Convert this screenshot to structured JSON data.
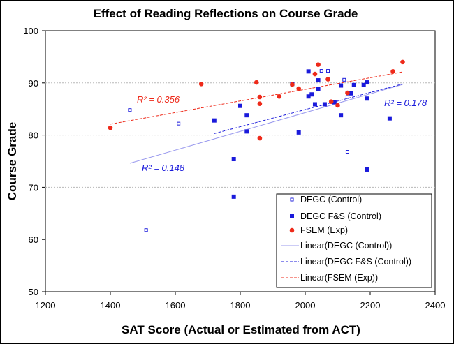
{
  "chart_data": {
    "type": "scatter",
    "title": "Effect of Reading Reflections on Course Grade",
    "xlabel": "SAT Score (Actual or Estimated from ACT)",
    "ylabel": "Course Grade",
    "xlim": [
      1200,
      2400
    ],
    "ylim": [
      50,
      100
    ],
    "xticks": [
      1200,
      1400,
      1600,
      1800,
      2000,
      2200,
      2400
    ],
    "yticks": [
      50,
      60,
      70,
      80,
      90,
      100
    ],
    "gridlines_y": [
      70,
      80,
      90
    ],
    "legend_position": "bottom-right",
    "series": [
      {
        "name": "DEGC (Control)",
        "marker": "hollow-square",
        "color": "#1a1adb",
        "points": [
          [
            1460,
            84.8
          ],
          [
            1510,
            61.8
          ],
          [
            1610,
            82.2
          ],
          [
            2050,
            92.3
          ],
          [
            2070,
            92.3
          ],
          [
            2120,
            90.6
          ],
          [
            2130,
            76.8
          ],
          [
            2130,
            87.3
          ]
        ]
      },
      {
        "name": "DEGC F&S (Control)",
        "marker": "filled-square",
        "color": "#1a1adb",
        "points": [
          [
            1720,
            82.8
          ],
          [
            1780,
            75.4
          ],
          [
            1780,
            68.2
          ],
          [
            1800,
            85.6
          ],
          [
            1820,
            83.8
          ],
          [
            1820,
            80.7
          ],
          [
            1960,
            89.8
          ],
          [
            1980,
            80.5
          ],
          [
            2010,
            92.2
          ],
          [
            2010,
            87.4
          ],
          [
            2020,
            87.8
          ],
          [
            2030,
            85.9
          ],
          [
            2040,
            88.8
          ],
          [
            2040,
            90.5
          ],
          [
            2060,
            85.9
          ],
          [
            2090,
            86.3
          ],
          [
            2110,
            89.5
          ],
          [
            2110,
            83.8
          ],
          [
            2140,
            88.0
          ],
          [
            2150,
            89.6
          ],
          [
            2180,
            89.6
          ],
          [
            2190,
            90.1
          ],
          [
            2190,
            87.0
          ],
          [
            2190,
            73.4
          ],
          [
            2260,
            83.2
          ]
        ]
      },
      {
        "name": "FSEM (Exp)",
        "marker": "circle",
        "color": "#ee2a1a",
        "points": [
          [
            1400,
            81.4
          ],
          [
            1680,
            89.8
          ],
          [
            1850,
            90.1
          ],
          [
            1860,
            87.3
          ],
          [
            1860,
            86.0
          ],
          [
            1860,
            79.4
          ],
          [
            1920,
            87.4
          ],
          [
            1960,
            89.7
          ],
          [
            1980,
            88.9
          ],
          [
            2030,
            91.7
          ],
          [
            2040,
            93.5
          ],
          [
            2070,
            90.7
          ],
          [
            2080,
            86.4
          ],
          [
            2100,
            85.7
          ],
          [
            2130,
            88.1
          ],
          [
            2270,
            92.2
          ],
          [
            2300,
            94.0
          ]
        ]
      }
    ],
    "trendlines": [
      {
        "name": "Linear(DEGC (Control))",
        "style": "solid",
        "color": "#9999ee",
        "x": [
          1460,
          2300
        ],
        "y": [
          74.6,
          89.7
        ],
        "r2_label": "R² = 0.148",
        "r2_color": "#1a1adb"
      },
      {
        "name": "Linear(DEGC F&S (Control))",
        "style": "dashed",
        "color": "#1a1adb",
        "x": [
          1720,
          2300
        ],
        "y": [
          80.3,
          89.8
        ],
        "r2_label": "R² = 0.178",
        "r2_color": "#1a1adb"
      },
      {
        "name": "Linear(FSEM (Exp))",
        "style": "dashed",
        "color": "#ee2a1a",
        "x": [
          1400,
          2300
        ],
        "y": [
          82.1,
          92.1
        ],
        "r2_label": "R² = 0.356",
        "r2_color": "#ee2a1a"
      }
    ]
  }
}
